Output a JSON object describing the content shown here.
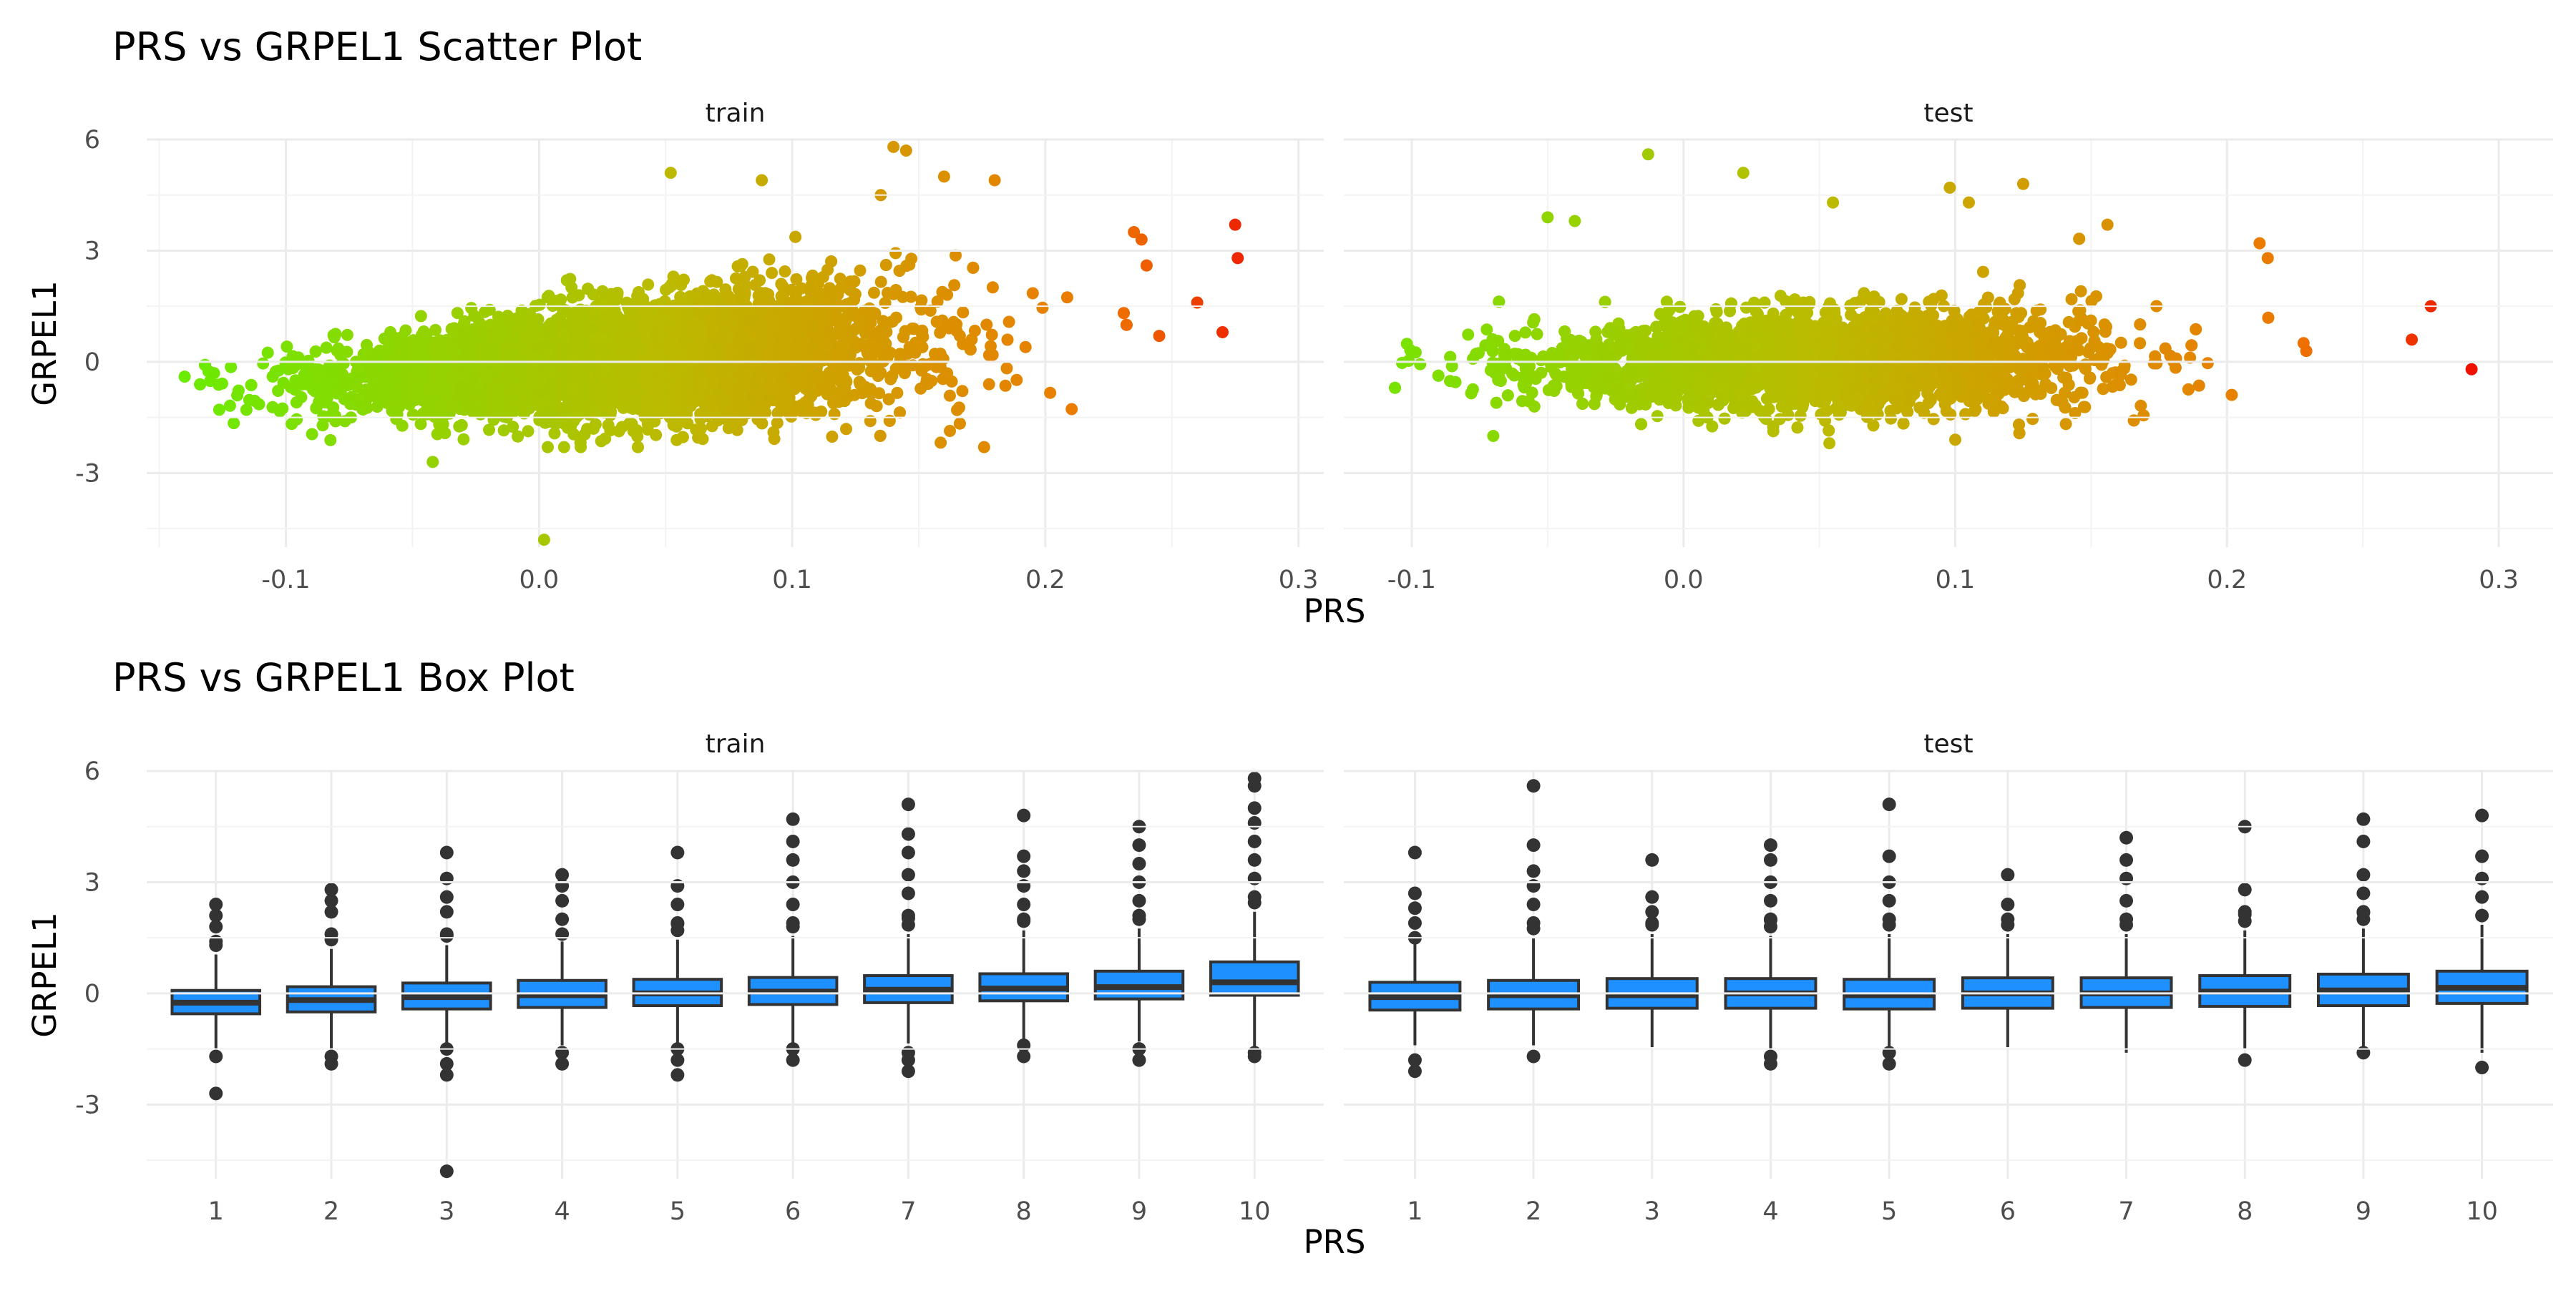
{
  "colors": {
    "low": "#66ee00",
    "mid": "#bbbb00",
    "high": "#ee7700",
    "max": "#ee1100",
    "box_fill": "#1e90ff",
    "box_line": "#333333"
  },
  "chart_data": [
    {
      "type": "scatter",
      "title": "PRS vs GRPEL1 Scatter Plot",
      "xlabel": "PRS",
      "ylabel": "GRPEL1",
      "y_ticks": [
        "6",
        "3",
        "0",
        "-3"
      ],
      "x_ticks": [
        "-0.1",
        "0.0",
        "0.1",
        "0.2",
        "0.3"
      ],
      "facets": [
        {
          "name": "train",
          "xlim": [
            -0.155,
            0.31
          ],
          "ylim": [
            -5.0,
            6.0
          ],
          "summary": {
            "x_min": -0.145,
            "x_max": 0.275,
            "y_min": -4.8,
            "y_max": 5.8,
            "center_y": 0.0
          },
          "outliers": [
            [
              0.275,
              3.7
            ],
            [
              0.276,
              2.8
            ],
            [
              0.27,
              0.8
            ],
            [
              0.245,
              0.7
            ],
            [
              0.26,
              1.6
            ],
            [
              0.002,
              -4.8
            ],
            [
              -0.042,
              -2.7
            ],
            [
              0.14,
              5.8
            ],
            [
              0.145,
              5.7
            ],
            [
              0.052,
              5.1
            ],
            [
              0.16,
              5.0
            ],
            [
              0.18,
              4.9
            ],
            [
              0.088,
              4.9
            ],
            [
              0.135,
              4.5
            ],
            [
              0.235,
              3.5
            ],
            [
              0.238,
              3.3
            ],
            [
              0.24,
              2.6
            ],
            [
              -0.14,
              -0.4
            ]
          ]
        },
        {
          "name": "test",
          "xlim": [
            -0.125,
            0.32
          ],
          "ylim": [
            -5.0,
            6.0
          ],
          "summary": {
            "x_min": -0.12,
            "x_max": 0.29,
            "y_min": -2.1,
            "y_max": 5.6,
            "center_y": 0.0
          },
          "outliers": [
            [
              0.29,
              -0.2
            ],
            [
              0.275,
              1.5
            ],
            [
              0.268,
              0.6
            ],
            [
              -0.013,
              5.6
            ],
            [
              0.022,
              5.1
            ],
            [
              0.125,
              4.8
            ],
            [
              0.098,
              4.7
            ],
            [
              0.105,
              4.3
            ],
            [
              -0.05,
              3.9
            ],
            [
              -0.04,
              3.8
            ],
            [
              0.055,
              4.3
            ],
            [
              0.156,
              3.7
            ],
            [
              0.212,
              3.2
            ],
            [
              0.215,
              2.8
            ],
            [
              0.1,
              -2.1
            ],
            [
              -0.07,
              -2.0
            ]
          ]
        }
      ]
    },
    {
      "type": "box",
      "title": "PRS vs GRPEL1 Box Plot",
      "xlabel": "PRS",
      "ylabel": "GRPEL1",
      "y_ticks": [
        "6",
        "3",
        "0",
        "-3"
      ],
      "categories": [
        "1",
        "2",
        "3",
        "4",
        "5",
        "6",
        "7",
        "8",
        "9",
        "10"
      ],
      "facets": [
        {
          "name": "train",
          "ylim": [
            -5.0,
            6.0
          ],
          "boxes": [
            {
              "q1": -0.55,
              "median": -0.25,
              "q3": 0.08,
              "lower": -1.5,
              "upper": 1.05,
              "outliers_high": [
                2.4,
                2.1,
                1.8,
                1.4
              ],
              "outliers_low": [
                -1.7,
                -2.7
              ]
            },
            {
              "q1": -0.5,
              "median": -0.18,
              "q3": 0.18,
              "lower": -1.6,
              "upper": 1.2,
              "outliers_high": [
                2.8,
                2.5,
                2.2,
                1.6
              ],
              "outliers_low": [
                -1.7,
                -1.9
              ]
            },
            {
              "q1": -0.42,
              "median": -0.1,
              "q3": 0.28,
              "lower": -1.45,
              "upper": 1.3,
              "outliers_high": [
                3.8,
                3.1,
                2.6,
                2.2,
                1.6
              ],
              "outliers_low": [
                -1.5,
                -1.9,
                -2.2,
                -4.8
              ]
            },
            {
              "q1": -0.38,
              "median": -0.05,
              "q3": 0.35,
              "lower": -1.4,
              "upper": 1.4,
              "outliers_high": [
                3.2,
                2.9,
                2.5,
                2.0,
                1.6
              ],
              "outliers_low": [
                -1.6,
                -1.9
              ]
            },
            {
              "q1": -0.33,
              "median": 0.0,
              "q3": 0.38,
              "lower": -1.4,
              "upper": 1.45,
              "outliers_high": [
                3.8,
                2.9,
                2.4,
                1.9
              ],
              "outliers_low": [
                -1.5,
                -1.8,
                -2.2
              ]
            },
            {
              "q1": -0.3,
              "median": 0.05,
              "q3": 0.43,
              "lower": -1.4,
              "upper": 1.55,
              "outliers_high": [
                4.7,
                4.1,
                3.6,
                3.0,
                2.4,
                1.9
              ],
              "outliers_low": [
                -1.5,
                -1.8
              ]
            },
            {
              "q1": -0.25,
              "median": 0.1,
              "q3": 0.48,
              "lower": -1.35,
              "upper": 1.6,
              "outliers_high": [
                5.1,
                4.3,
                3.8,
                3.2,
                2.7,
                2.1
              ],
              "outliers_low": [
                -1.6,
                -1.8,
                -2.1
              ]
            },
            {
              "q1": -0.2,
              "median": 0.13,
              "q3": 0.53,
              "lower": -1.3,
              "upper": 1.7,
              "outliers_high": [
                4.8,
                3.7,
                3.3,
                2.9,
                2.4,
                2.0
              ],
              "outliers_low": [
                -1.4,
                -1.7
              ]
            },
            {
              "q1": -0.15,
              "median": 0.17,
              "q3": 0.6,
              "lower": -1.3,
              "upper": 1.75,
              "outliers_high": [
                4.5,
                4.0,
                3.5,
                3.0,
                2.5,
                2.1
              ],
              "outliers_low": [
                -1.5,
                -1.8
              ]
            },
            {
              "q1": -0.05,
              "median": 0.3,
              "q3": 0.85,
              "lower": -1.5,
              "upper": 2.2,
              "outliers_high": [
                5.8,
                5.6,
                5.0,
                4.6,
                4.1,
                3.6,
                3.1,
                2.6
              ],
              "outliers_low": [
                -1.6,
                -1.7
              ]
            }
          ]
        },
        {
          "name": "test",
          "ylim": [
            -5.0,
            6.0
          ],
          "boxes": [
            {
              "q1": -0.45,
              "median": -0.1,
              "q3": 0.3,
              "lower": -1.4,
              "upper": 1.35,
              "outliers_high": [
                3.8,
                2.7,
                2.3,
                1.9,
                1.5
              ],
              "outliers_low": [
                -1.8,
                -2.1
              ]
            },
            {
              "q1": -0.42,
              "median": -0.05,
              "q3": 0.35,
              "lower": -1.4,
              "upper": 1.5,
              "outliers_high": [
                5.6,
                4.0,
                3.3,
                2.9,
                2.4,
                1.9
              ],
              "outliers_low": [
                -1.7
              ]
            },
            {
              "q1": -0.4,
              "median": -0.05,
              "q3": 0.4,
              "lower": -1.45,
              "upper": 1.6,
              "outliers_high": [
                3.6,
                2.6,
                2.2,
                1.9
              ]
            },
            {
              "q1": -0.4,
              "median": 0.0,
              "q3": 0.4,
              "lower": -1.5,
              "upper": 1.55,
              "outliers_high": [
                4.0,
                3.6,
                3.0,
                2.5,
                2.0
              ],
              "outliers_low": [
                -1.7,
                -1.9
              ]
            },
            {
              "q1": -0.42,
              "median": -0.05,
              "q3": 0.38,
              "lower": -1.45,
              "upper": 1.6,
              "outliers_high": [
                5.1,
                3.7,
                3.0,
                2.5,
                2.0
              ],
              "outliers_low": [
                -1.6,
                -1.9
              ]
            },
            {
              "q1": -0.4,
              "median": 0.0,
              "q3": 0.42,
              "lower": -1.45,
              "upper": 1.6,
              "outliers_high": [
                3.2,
                2.4,
                2.0
              ]
            },
            {
              "q1": -0.38,
              "median": 0.0,
              "q3": 0.42,
              "lower": -1.6,
              "upper": 1.6,
              "outliers_high": [
                4.2,
                3.6,
                3.1,
                2.5,
                2.0
              ]
            },
            {
              "q1": -0.35,
              "median": 0.05,
              "q3": 0.48,
              "lower": -1.5,
              "upper": 1.7,
              "outliers_high": [
                4.5,
                2.8,
                2.2
              ],
              "outliers_low": [
                -1.8
              ]
            },
            {
              "q1": -0.33,
              "median": 0.08,
              "q3": 0.52,
              "lower": -1.5,
              "upper": 1.75,
              "outliers_high": [
                4.7,
                4.1,
                3.2,
                2.7,
                2.2
              ],
              "outliers_low": [
                -1.6
              ]
            },
            {
              "q1": -0.27,
              "median": 0.15,
              "q3": 0.6,
              "lower": -1.6,
              "upper": 1.85,
              "outliers_high": [
                4.8,
                3.7,
                3.1,
                2.6,
                2.1
              ],
              "outliers_low": [
                -2.0
              ]
            }
          ]
        }
      ]
    }
  ]
}
